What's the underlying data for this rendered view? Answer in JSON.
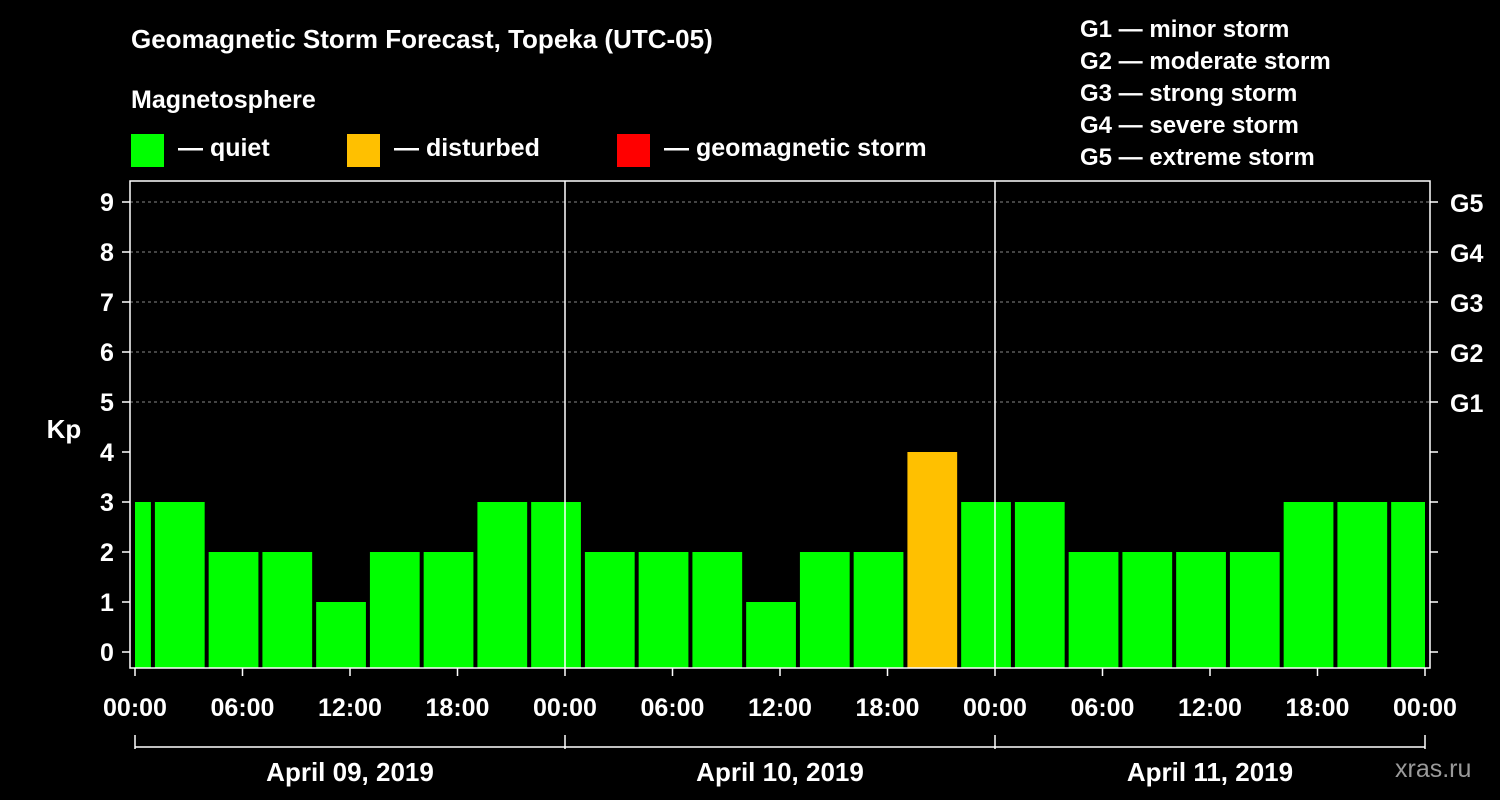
{
  "header": {
    "title": "Geomagnetic Storm Forecast, Topeka (UTC-05)",
    "magnetosphere_label": "Magnetosphere"
  },
  "legend": [
    {
      "label": "— quiet",
      "color": "#00ff00"
    },
    {
      "label": "— disturbed",
      "color": "#ffc000"
    },
    {
      "label": "— geomagnetic storm",
      "color": "#ff0000"
    }
  ],
  "storm_levels": [
    "G1 — minor storm",
    "G2 — moderate storm",
    "G3 — strong storm",
    "G4 — severe storm",
    "G5 — extreme storm"
  ],
  "watermark": "xras.ru",
  "chart_data": {
    "type": "bar",
    "title": "Geomagnetic Storm Forecast, Topeka (UTC-05)",
    "ylabel": "Kp",
    "ylim": [
      0,
      9
    ],
    "y_ticks": [
      "0",
      "1",
      "2",
      "3",
      "4",
      "5",
      "6",
      "7",
      "8",
      "9"
    ],
    "right_ticks": [
      {
        "kp": 5,
        "label": "G1"
      },
      {
        "kp": 6,
        "label": "G2"
      },
      {
        "kp": 7,
        "label": "G3"
      },
      {
        "kp": 8,
        "label": "G4"
      },
      {
        "kp": 9,
        "label": "G5"
      }
    ],
    "x_range_hours": [
      0,
      72
    ],
    "x_ticks": [
      "00:00",
      "06:00",
      "12:00",
      "18:00",
      "00:00",
      "06:00",
      "12:00",
      "18:00",
      "00:00",
      "06:00",
      "12:00",
      "18:00",
      "00:00"
    ],
    "days": [
      "April 09, 2019",
      "April 10, 2019",
      "April 11, 2019"
    ],
    "bars": [
      {
        "start": 0,
        "end": 1,
        "kp": 3,
        "level": "quiet"
      },
      {
        "start": 1,
        "end": 4,
        "kp": 3,
        "level": "quiet"
      },
      {
        "start": 4,
        "end": 7,
        "kp": 2,
        "level": "quiet"
      },
      {
        "start": 7,
        "end": 10,
        "kp": 2,
        "level": "quiet"
      },
      {
        "start": 10,
        "end": 13,
        "kp": 1,
        "level": "quiet"
      },
      {
        "start": 13,
        "end": 16,
        "kp": 2,
        "level": "quiet"
      },
      {
        "start": 16,
        "end": 19,
        "kp": 2,
        "level": "quiet"
      },
      {
        "start": 19,
        "end": 22,
        "kp": 3,
        "level": "quiet"
      },
      {
        "start": 22,
        "end": 25,
        "kp": 3,
        "level": "quiet"
      },
      {
        "start": 25,
        "end": 28,
        "kp": 2,
        "level": "quiet"
      },
      {
        "start": 28,
        "end": 31,
        "kp": 2,
        "level": "quiet"
      },
      {
        "start": 31,
        "end": 34,
        "kp": 2,
        "level": "quiet"
      },
      {
        "start": 34,
        "end": 37,
        "kp": 1,
        "level": "quiet"
      },
      {
        "start": 37,
        "end": 40,
        "kp": 2,
        "level": "quiet"
      },
      {
        "start": 40,
        "end": 43,
        "kp": 2,
        "level": "quiet"
      },
      {
        "start": 43,
        "end": 46,
        "kp": 4,
        "level": "disturbed"
      },
      {
        "start": 46,
        "end": 49,
        "kp": 3,
        "level": "quiet"
      },
      {
        "start": 49,
        "end": 52,
        "kp": 3,
        "level": "quiet"
      },
      {
        "start": 52,
        "end": 55,
        "kp": 2,
        "level": "quiet"
      },
      {
        "start": 55,
        "end": 58,
        "kp": 2,
        "level": "quiet"
      },
      {
        "start": 58,
        "end": 61,
        "kp": 2,
        "level": "quiet"
      },
      {
        "start": 61,
        "end": 64,
        "kp": 2,
        "level": "quiet"
      },
      {
        "start": 64,
        "end": 67,
        "kp": 3,
        "level": "quiet"
      },
      {
        "start": 67,
        "end": 70,
        "kp": 3,
        "level": "quiet"
      },
      {
        "start": 70,
        "end": 72,
        "kp": 3,
        "level": "quiet"
      }
    ],
    "level_colors": {
      "quiet": "#00ff00",
      "disturbed": "#ffc000",
      "storm": "#ff0000"
    },
    "grid": "dashed at Kp 5-9"
  }
}
